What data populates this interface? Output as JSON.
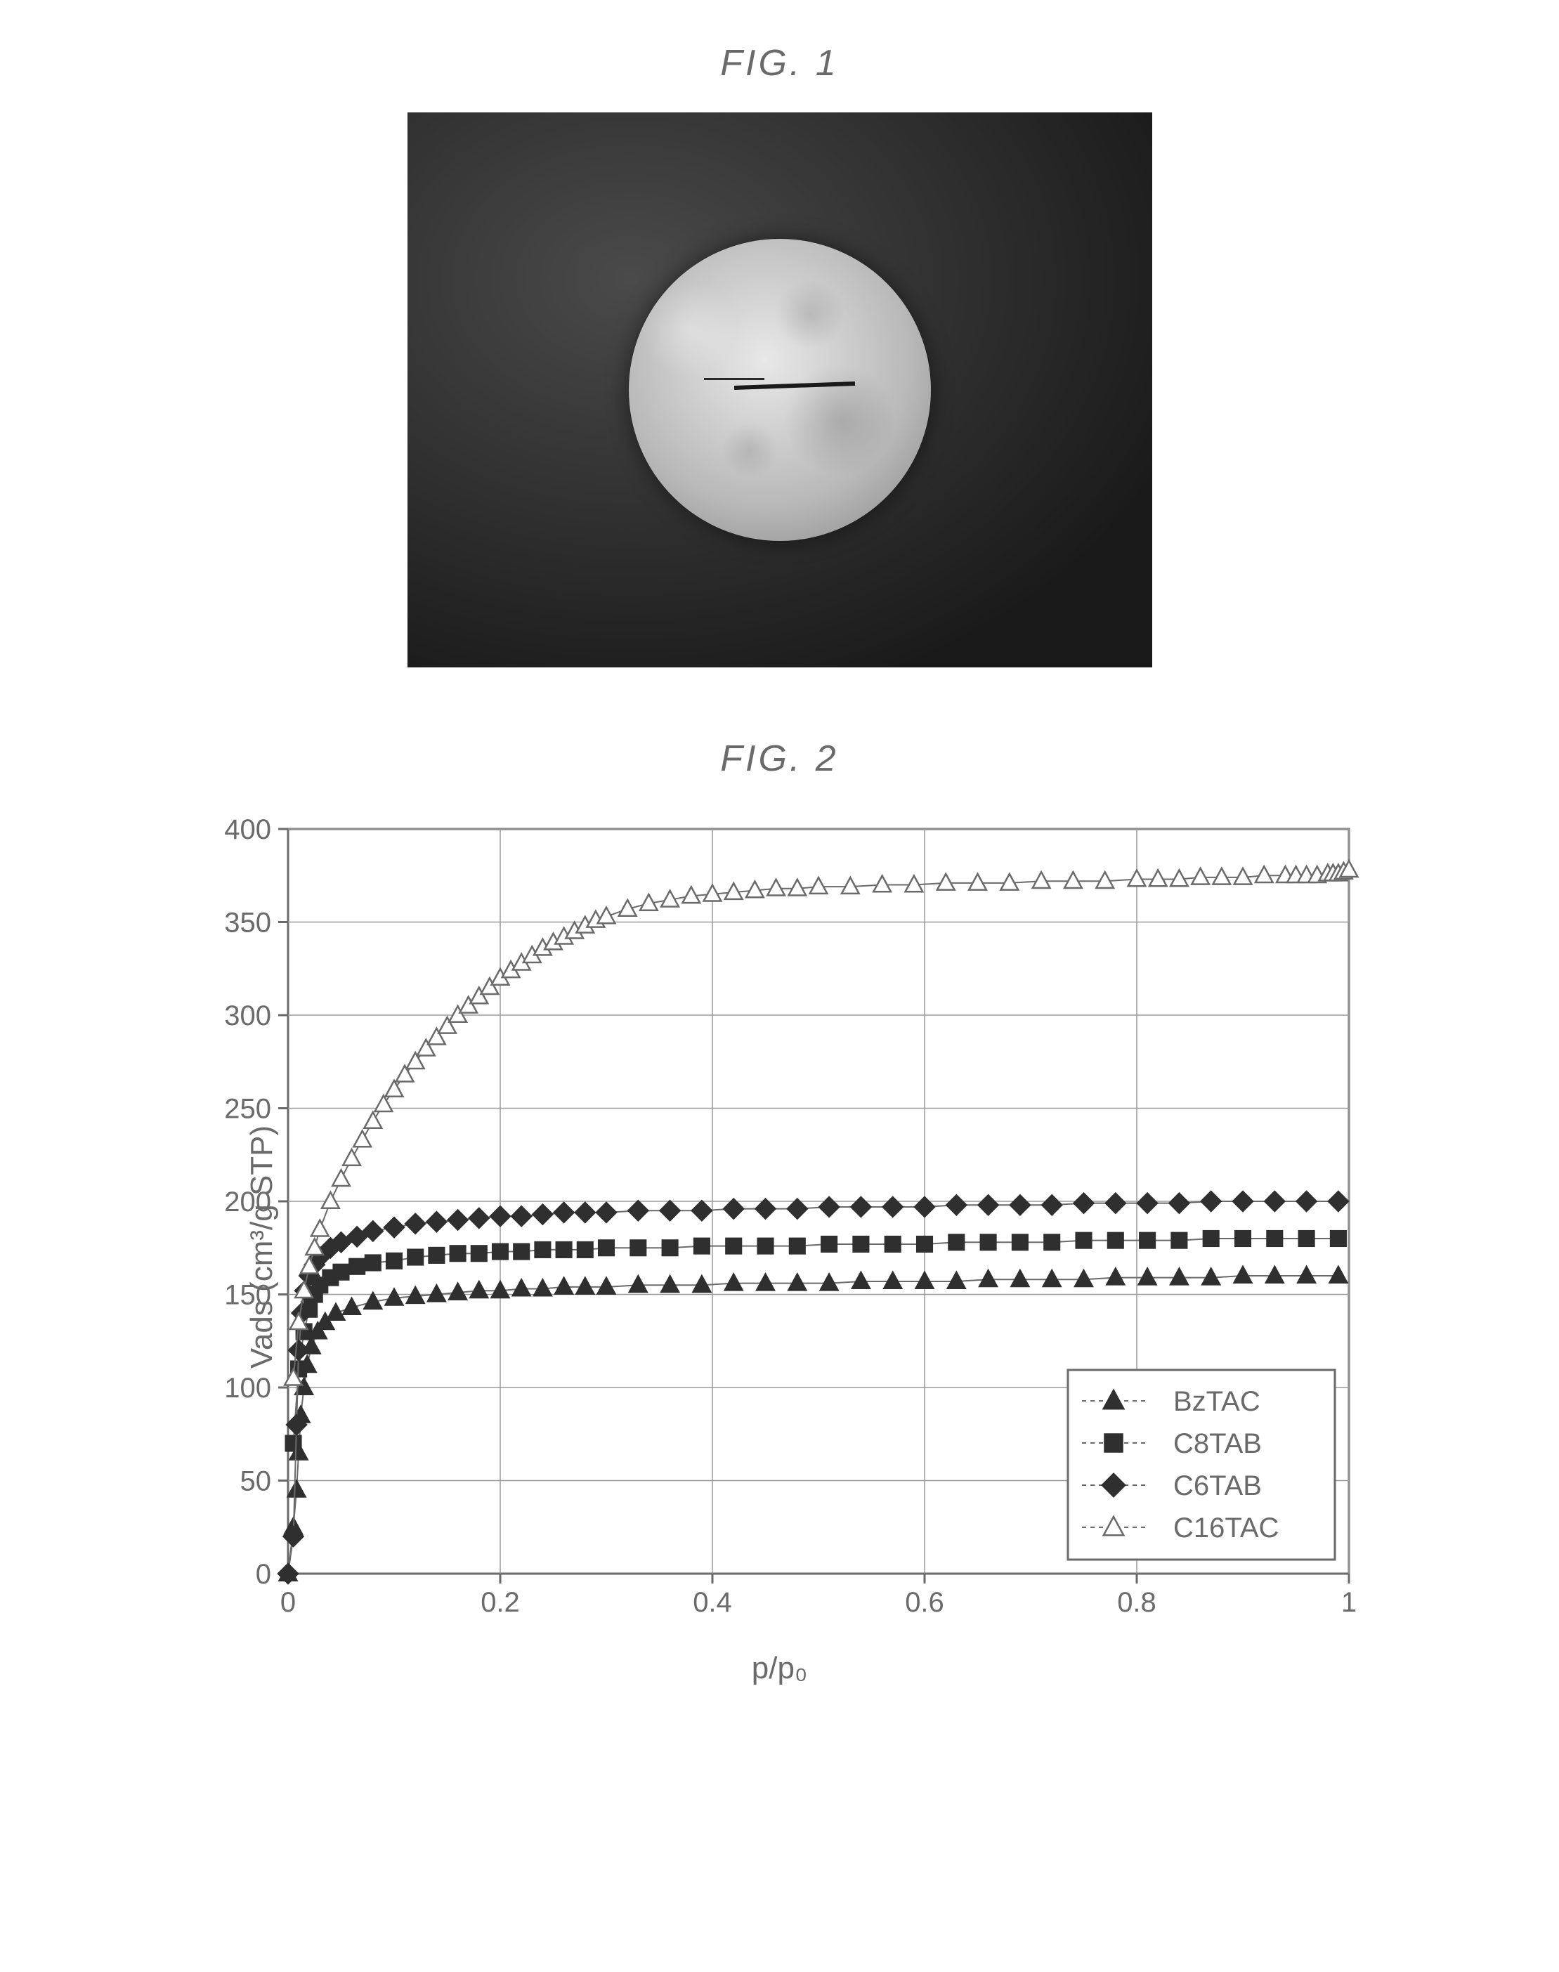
{
  "figure1": {
    "title": "FIG.   1",
    "background_color": "#2a2a2a",
    "sphere_color": "#d0d0d0"
  },
  "figure2": {
    "title": "FIG.   2",
    "chart": {
      "type": "scatter-line",
      "xlabel": "p/p₀",
      "ylabel": "Vads (cm³/g STP)",
      "xlim": [
        0,
        1
      ],
      "ylim": [
        0,
        400
      ],
      "xtick_step": 0.2,
      "ytick_step": 50,
      "xticks": [
        "0",
        "0.2",
        "0.4",
        "0.6",
        "0.8",
        "1"
      ],
      "yticks": [
        "0",
        "50",
        "100",
        "150",
        "200",
        "250",
        "300",
        "350",
        "400"
      ],
      "background_color": "#ffffff",
      "grid_color": "#9a9a9a",
      "axis_color": "#6a6a6a",
      "tick_fontsize": 40,
      "label_fontsize": 44,
      "series": [
        {
          "name": "BzTAC",
          "marker": "triangle-filled",
          "color": "#2f2f2f",
          "fill": "#2f2f2f",
          "line_color": "#6a6a6a",
          "data": [
            [
              0.0,
              0
            ],
            [
              0.005,
              25
            ],
            [
              0.008,
              45
            ],
            [
              0.01,
              65
            ],
            [
              0.012,
              85
            ],
            [
              0.015,
              100
            ],
            [
              0.018,
              112
            ],
            [
              0.022,
              122
            ],
            [
              0.028,
              130
            ],
            [
              0.035,
              135
            ],
            [
              0.045,
              140
            ],
            [
              0.06,
              143
            ],
            [
              0.08,
              146
            ],
            [
              0.1,
              148
            ],
            [
              0.12,
              149
            ],
            [
              0.14,
              150
            ],
            [
              0.16,
              151
            ],
            [
              0.18,
              152
            ],
            [
              0.2,
              152
            ],
            [
              0.22,
              153
            ],
            [
              0.24,
              153
            ],
            [
              0.26,
              154
            ],
            [
              0.28,
              154
            ],
            [
              0.3,
              154
            ],
            [
              0.33,
              155
            ],
            [
              0.36,
              155
            ],
            [
              0.39,
              155
            ],
            [
              0.42,
              156
            ],
            [
              0.45,
              156
            ],
            [
              0.48,
              156
            ],
            [
              0.51,
              156
            ],
            [
              0.54,
              157
            ],
            [
              0.57,
              157
            ],
            [
              0.6,
              157
            ],
            [
              0.63,
              157
            ],
            [
              0.66,
              158
            ],
            [
              0.69,
              158
            ],
            [
              0.72,
              158
            ],
            [
              0.75,
              158
            ],
            [
              0.78,
              159
            ],
            [
              0.81,
              159
            ],
            [
              0.84,
              159
            ],
            [
              0.87,
              159
            ],
            [
              0.9,
              160
            ],
            [
              0.93,
              160
            ],
            [
              0.96,
              160
            ],
            [
              0.99,
              160
            ]
          ]
        },
        {
          "name": "C8TAB",
          "marker": "square-filled",
          "color": "#2f2f2f",
          "fill": "#2f2f2f",
          "line_color": "#6a6a6a",
          "data": [
            [
              0.005,
              70
            ],
            [
              0.01,
              110
            ],
            [
              0.015,
              130
            ],
            [
              0.02,
              142
            ],
            [
              0.025,
              150
            ],
            [
              0.03,
              155
            ],
            [
              0.04,
              159
            ],
            [
              0.05,
              162
            ],
            [
              0.065,
              165
            ],
            [
              0.08,
              167
            ],
            [
              0.1,
              168
            ],
            [
              0.12,
              170
            ],
            [
              0.14,
              171
            ],
            [
              0.16,
              172
            ],
            [
              0.18,
              172
            ],
            [
              0.2,
              173
            ],
            [
              0.22,
              173
            ],
            [
              0.24,
              174
            ],
            [
              0.26,
              174
            ],
            [
              0.28,
              174
            ],
            [
              0.3,
              175
            ],
            [
              0.33,
              175
            ],
            [
              0.36,
              175
            ],
            [
              0.39,
              176
            ],
            [
              0.42,
              176
            ],
            [
              0.45,
              176
            ],
            [
              0.48,
              176
            ],
            [
              0.51,
              177
            ],
            [
              0.54,
              177
            ],
            [
              0.57,
              177
            ],
            [
              0.6,
              177
            ],
            [
              0.63,
              178
            ],
            [
              0.66,
              178
            ],
            [
              0.69,
              178
            ],
            [
              0.72,
              178
            ],
            [
              0.75,
              179
            ],
            [
              0.78,
              179
            ],
            [
              0.81,
              179
            ],
            [
              0.84,
              179
            ],
            [
              0.87,
              180
            ],
            [
              0.9,
              180
            ],
            [
              0.93,
              180
            ],
            [
              0.96,
              180
            ],
            [
              0.99,
              180
            ]
          ]
        },
        {
          "name": "C6TAB",
          "marker": "diamond-filled",
          "color": "#2f2f2f",
          "fill": "#2f2f2f",
          "line_color": "#6a6a6a",
          "data": [
            [
              0.0,
              0
            ],
            [
              0.005,
              20
            ],
            [
              0.008,
              80
            ],
            [
              0.01,
              120
            ],
            [
              0.013,
              140
            ],
            [
              0.016,
              152
            ],
            [
              0.02,
              160
            ],
            [
              0.025,
              166
            ],
            [
              0.03,
              170
            ],
            [
              0.04,
              175
            ],
            [
              0.05,
              178
            ],
            [
              0.065,
              181
            ],
            [
              0.08,
              184
            ],
            [
              0.1,
              186
            ],
            [
              0.12,
              188
            ],
            [
              0.14,
              189
            ],
            [
              0.16,
              190
            ],
            [
              0.18,
              191
            ],
            [
              0.2,
              192
            ],
            [
              0.22,
              192
            ],
            [
              0.24,
              193
            ],
            [
              0.26,
              194
            ],
            [
              0.28,
              194
            ],
            [
              0.3,
              194
            ],
            [
              0.33,
              195
            ],
            [
              0.36,
              195
            ],
            [
              0.39,
              195
            ],
            [
              0.42,
              196
            ],
            [
              0.45,
              196
            ],
            [
              0.48,
              196
            ],
            [
              0.51,
              197
            ],
            [
              0.54,
              197
            ],
            [
              0.57,
              197
            ],
            [
              0.6,
              197
            ],
            [
              0.63,
              198
            ],
            [
              0.66,
              198
            ],
            [
              0.69,
              198
            ],
            [
              0.72,
              198
            ],
            [
              0.75,
              199
            ],
            [
              0.78,
              199
            ],
            [
              0.81,
              199
            ],
            [
              0.84,
              199
            ],
            [
              0.87,
              200
            ],
            [
              0.9,
              200
            ],
            [
              0.93,
              200
            ],
            [
              0.96,
              200
            ],
            [
              0.99,
              200
            ]
          ]
        },
        {
          "name": "C16TAC",
          "marker": "triangle-open",
          "color": "#6a6a6a",
          "fill": "#ffffff",
          "line_color": "#6a6a6a",
          "data": [
            [
              0.005,
              105
            ],
            [
              0.01,
              135
            ],
            [
              0.015,
              152
            ],
            [
              0.02,
              165
            ],
            [
              0.025,
              175
            ],
            [
              0.03,
              185
            ],
            [
              0.04,
              200
            ],
            [
              0.05,
              212
            ],
            [
              0.06,
              223
            ],
            [
              0.07,
              233
            ],
            [
              0.08,
              243
            ],
            [
              0.09,
              252
            ],
            [
              0.1,
              260
            ],
            [
              0.11,
              268
            ],
            [
              0.12,
              275
            ],
            [
              0.13,
              282
            ],
            [
              0.14,
              288
            ],
            [
              0.15,
              294
            ],
            [
              0.16,
              300
            ],
            [
              0.17,
              305
            ],
            [
              0.18,
              310
            ],
            [
              0.19,
              315
            ],
            [
              0.2,
              320
            ],
            [
              0.21,
              324
            ],
            [
              0.22,
              328
            ],
            [
              0.23,
              332
            ],
            [
              0.24,
              336
            ],
            [
              0.25,
              339
            ],
            [
              0.26,
              342
            ],
            [
              0.27,
              345
            ],
            [
              0.28,
              348
            ],
            [
              0.29,
              351
            ],
            [
              0.3,
              353
            ],
            [
              0.32,
              357
            ],
            [
              0.34,
              360
            ],
            [
              0.36,
              362
            ],
            [
              0.38,
              364
            ],
            [
              0.4,
              365
            ],
            [
              0.42,
              366
            ],
            [
              0.44,
              367
            ],
            [
              0.46,
              368
            ],
            [
              0.48,
              368
            ],
            [
              0.5,
              369
            ],
            [
              0.53,
              369
            ],
            [
              0.56,
              370
            ],
            [
              0.59,
              370
            ],
            [
              0.62,
              371
            ],
            [
              0.65,
              371
            ],
            [
              0.68,
              371
            ],
            [
              0.71,
              372
            ],
            [
              0.74,
              372
            ],
            [
              0.77,
              372
            ],
            [
              0.8,
              373
            ],
            [
              0.82,
              373
            ],
            [
              0.84,
              373
            ],
            [
              0.86,
              374
            ],
            [
              0.88,
              374
            ],
            [
              0.9,
              374
            ],
            [
              0.92,
              375
            ],
            [
              0.94,
              375
            ],
            [
              0.95,
              375
            ],
            [
              0.96,
              375
            ],
            [
              0.97,
              375
            ],
            [
              0.98,
              376
            ],
            [
              0.985,
              376
            ],
            [
              0.99,
              376
            ],
            [
              0.995,
              377
            ],
            [
              1.0,
              378
            ]
          ]
        }
      ],
      "legend": {
        "position": "lower-right",
        "border_color": "#6a6a6a",
        "background": "#ffffff",
        "fontsize": 40,
        "items": [
          "BzTAC",
          "C8TAB",
          "C6TAB",
          "C16TAC"
        ]
      }
    }
  }
}
